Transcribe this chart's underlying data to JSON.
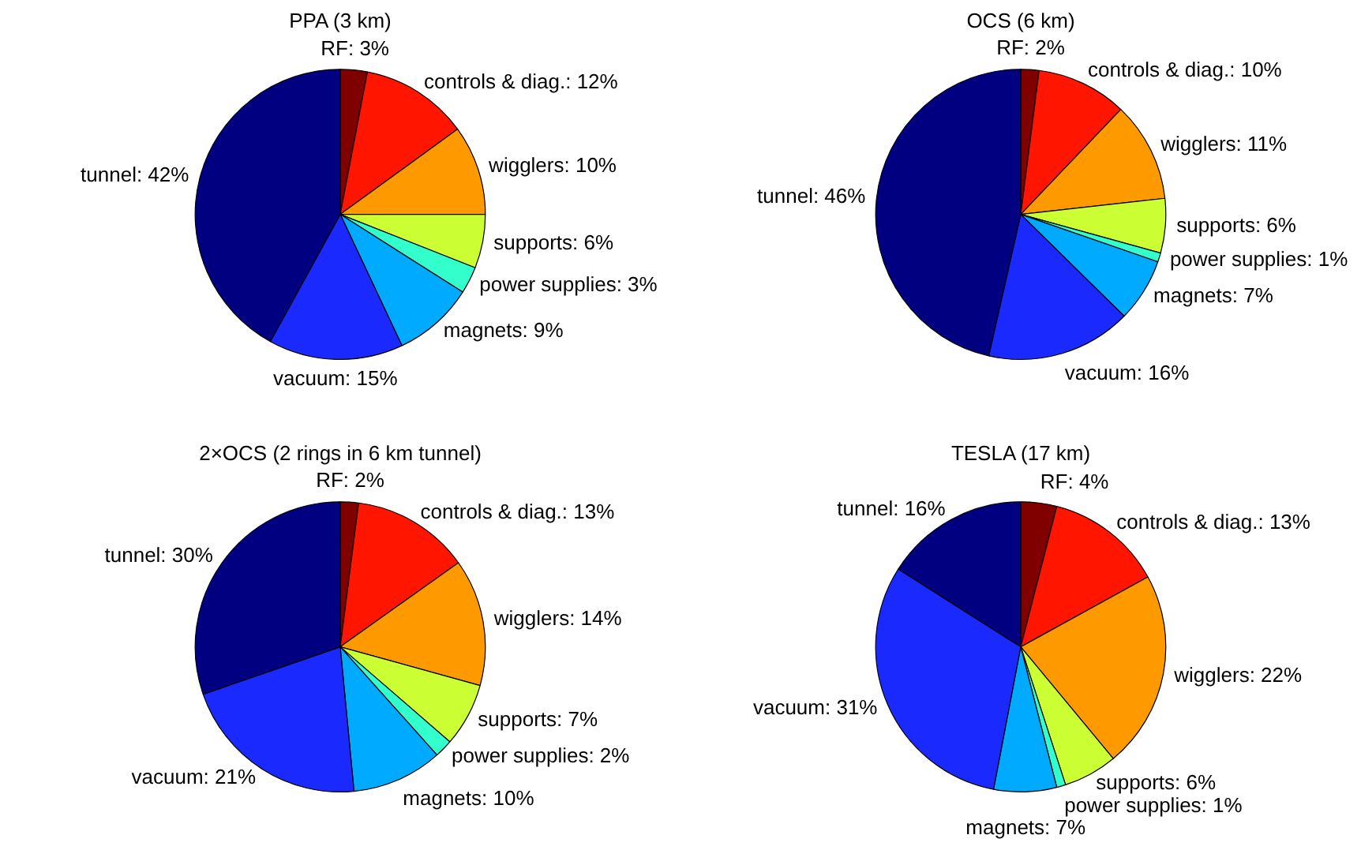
{
  "chart_data": [
    {
      "type": "pie",
      "title": "PPA (3 km)",
      "categories": [
        "RF",
        "controls & diag.",
        "wigglers",
        "supports",
        "power supplies",
        "magnets",
        "vacuum",
        "tunnel"
      ],
      "values": [
        3,
        12,
        10,
        6,
        3,
        9,
        15,
        42
      ],
      "value_labels": [
        "3%",
        "12%",
        "10%",
        "6%",
        "3%",
        "9%",
        "15%",
        "42%"
      ],
      "colors": [
        "#800000",
        "#ff1500",
        "#ff9900",
        "#ccff33",
        "#33ffcc",
        "#00aaff",
        "#1a2aff",
        "#000080"
      ]
    },
    {
      "type": "pie",
      "title": "OCS (6 km)",
      "categories": [
        "RF",
        "controls & diag.",
        "wigglers",
        "supports",
        "power supplies",
        "magnets",
        "vacuum",
        "tunnel"
      ],
      "values": [
        2,
        10,
        11,
        6,
        1,
        7,
        16,
        46
      ],
      "value_labels": [
        "2%",
        "10%",
        "11%",
        "6%",
        "1%",
        "7%",
        "16%",
        "46%"
      ],
      "colors": [
        "#800000",
        "#ff1500",
        "#ff9900",
        "#ccff33",
        "#33ffcc",
        "#00aaff",
        "#1a2aff",
        "#000080"
      ]
    },
    {
      "type": "pie",
      "title": "2×OCS (2 rings in 6 km tunnel)",
      "categories": [
        "RF",
        "controls & diag.",
        "wigglers",
        "supports",
        "power supplies",
        "magnets",
        "vacuum",
        "tunnel"
      ],
      "values": [
        2,
        13,
        14,
        7,
        2,
        10,
        21,
        30
      ],
      "value_labels": [
        "2%",
        "13%",
        "14%",
        "7%",
        "2%",
        "10%",
        "21%",
        "30%"
      ],
      "colors": [
        "#800000",
        "#ff1500",
        "#ff9900",
        "#ccff33",
        "#33ffcc",
        "#00aaff",
        "#1a2aff",
        "#000080"
      ]
    },
    {
      "type": "pie",
      "title": "TESLA (17 km)",
      "categories": [
        "RF",
        "controls & diag.",
        "wigglers",
        "supports",
        "power supplies",
        "magnets",
        "vacuum",
        "tunnel"
      ],
      "values": [
        4,
        13,
        22,
        6,
        1,
        7,
        31,
        16
      ],
      "value_labels": [
        "4%",
        "13%",
        "22%",
        "6%",
        "1%",
        "7%",
        "31%",
        "16%"
      ],
      "colors": [
        "#800000",
        "#ff1500",
        "#ff9900",
        "#ccff33",
        "#33ffcc",
        "#00aaff",
        "#1a2aff",
        "#000080"
      ]
    }
  ]
}
